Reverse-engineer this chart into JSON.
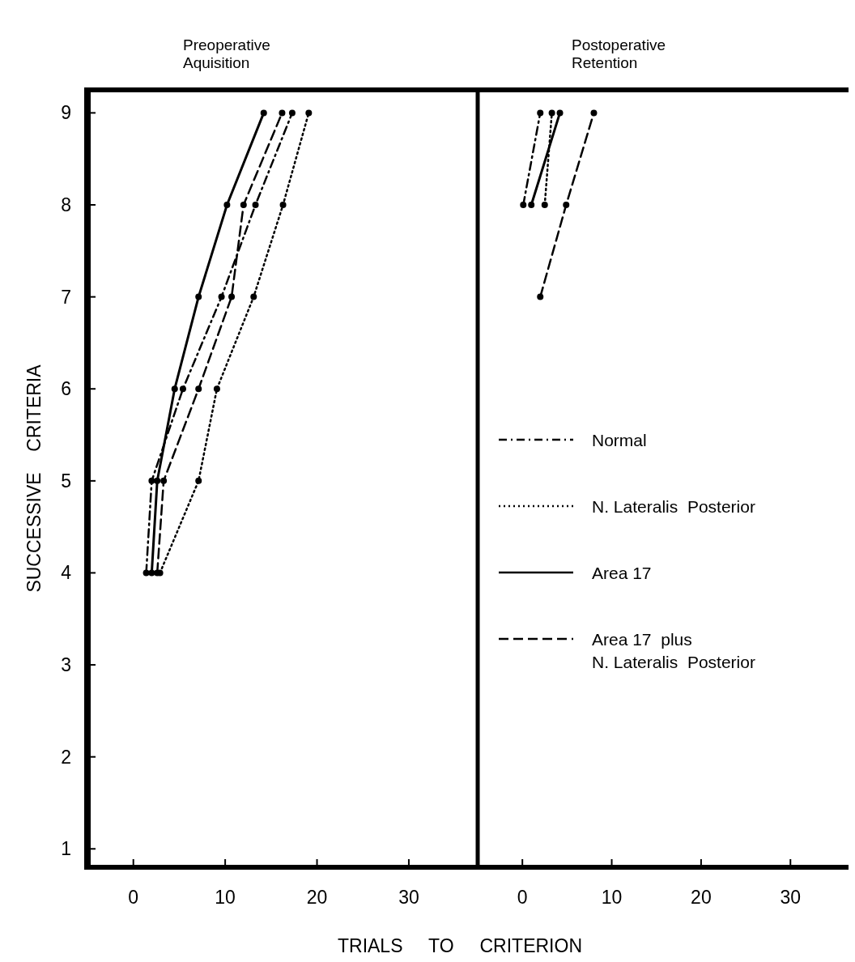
{
  "chart_data": [
    {
      "type": "line",
      "title": "Preoperative\nAquisition",
      "xlabel": "TRIALS TO CRITERION",
      "ylabel": "SUCCESSIVE CRITERIA",
      "xlim": [
        -5,
        37.5
      ],
      "ylim": [
        0.8,
        9.25
      ],
      "xticks": [
        0,
        10,
        20,
        30
      ],
      "yticks": [
        1,
        2,
        3,
        4,
        5,
        6,
        7,
        8,
        9
      ],
      "legend": false,
      "marker": "circle",
      "series": [
        {
          "color": "#000000",
          "line_style": "dashdot",
          "x": [
            1.4,
            2.0,
            5.4,
            9.6,
            13.3,
            17.3
          ],
          "values": [
            4,
            5,
            6,
            7,
            8,
            9
          ]
        },
        {
          "color": "#000000",
          "line_style": "dotted",
          "x": [
            2.9,
            7.1,
            9.1,
            13.1,
            16.3,
            19.1
          ],
          "values": [
            4,
            5,
            6,
            7,
            8,
            9
          ]
        },
        {
          "color": "#000000",
          "line_style": "solid",
          "x": [
            2.0,
            2.6,
            4.5,
            7.1,
            10.2,
            14.2
          ],
          "values": [
            4,
            5,
            6,
            7,
            8,
            9
          ]
        },
        {
          "color": "#000000",
          "line_style": "dashed",
          "x": [
            2.6,
            3.3,
            7.1,
            10.7,
            12.0,
            16.2
          ],
          "values": [
            4,
            5,
            6,
            7,
            8,
            9
          ]
        }
      ]
    },
    {
      "type": "line",
      "title": "Postoperative\nRetention",
      "xlim": [
        -5,
        36.5
      ],
      "ylim": [
        0.8,
        9.25
      ],
      "xticks": [
        0,
        10,
        20,
        30
      ],
      "tick_labels": "x",
      "legend": "left",
      "marker": "circle",
      "series": [
        {
          "name": "Normal",
          "color": "#000000",
          "line_style": "dashdot",
          "x": [
            0.1,
            2.0
          ],
          "values": [
            8,
            9
          ]
        },
        {
          "name": "N. Lateralis  Posterior",
          "color": "#000000",
          "line_style": "dotted",
          "x": [
            2.5,
            3.3
          ],
          "values": [
            8,
            9
          ]
        },
        {
          "name": "Area 17",
          "color": "#000000",
          "line_style": "solid",
          "x": [
            1.0,
            4.2
          ],
          "values": [
            8,
            9
          ]
        },
        {
          "name": "Area 17  plus\nN. Lateralis  Posterior",
          "color": "#000000",
          "line_style": "dashed",
          "x": [
            2.0,
            4.9,
            8.0
          ],
          "values": [
            7,
            8,
            9
          ]
        }
      ]
    }
  ]
}
